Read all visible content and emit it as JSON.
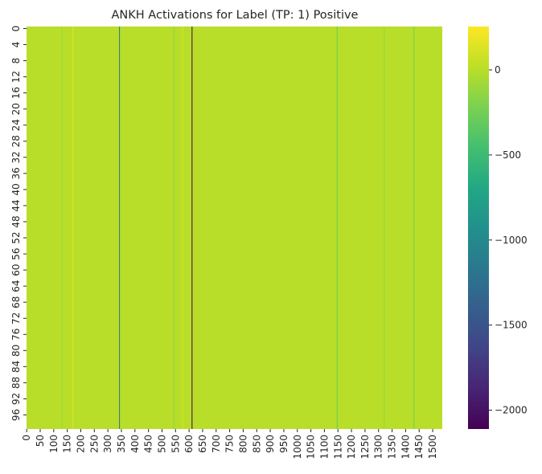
{
  "chart_data": {
    "type": "heatmap",
    "title": "ANKH Activations for Label (TP: 1) Positive",
    "xlabel": "",
    "ylabel": "",
    "colormap": "viridis",
    "n_rows": 100,
    "n_cols": 1536,
    "value_range": [
      -2111,
      255
    ],
    "base_value": 0,
    "x_tick_labels": [
      "0",
      "50",
      "100",
      "150",
      "200",
      "250",
      "300",
      "350",
      "400",
      "450",
      "500",
      "550",
      "600",
      "650",
      "700",
      "750",
      "800",
      "850",
      "900",
      "950",
      "1000",
      "1050",
      "1100",
      "1150",
      "1200",
      "1250",
      "1300",
      "1350",
      "1400",
      "1450",
      "1500"
    ],
    "y_tick_labels": [
      "0",
      "4",
      "8",
      "12",
      "16",
      "20",
      "24",
      "28",
      "32",
      "36",
      "40",
      "44",
      "48",
      "52",
      "56",
      "60",
      "64",
      "68",
      "72",
      "76",
      "80",
      "84",
      "88",
      "92",
      "96"
    ],
    "colorbar": {
      "ticks": [
        -2000,
        -1500,
        -1000,
        -500,
        0
      ],
      "tick_labels": [
        "−2000",
        "−1500",
        "−1000",
        "−500",
        "0"
      ]
    },
    "highlighted_columns": [
      {
        "column": 342,
        "value": -1200
      },
      {
        "column": 610,
        "value": -2111
      },
      {
        "column": 1146,
        "value": -300
      },
      {
        "column": 1430,
        "value": -250
      },
      {
        "column": 543,
        "value": -150
      },
      {
        "column": 575,
        "value": 150
      },
      {
        "column": 130,
        "value": -100
      },
      {
        "column": 170,
        "value": 150
      },
      {
        "column": 1320,
        "value": -120
      }
    ]
  }
}
